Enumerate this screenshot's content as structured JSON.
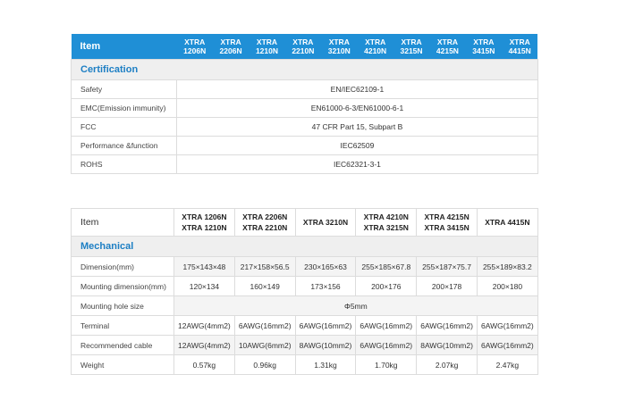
{
  "certification_table": {
    "header_item": "Item",
    "models": [
      [
        "XTRA",
        "1206N"
      ],
      [
        "XTRA",
        "2206N"
      ],
      [
        "XTRA",
        "1210N"
      ],
      [
        "XTRA",
        "2210N"
      ],
      [
        "XTRA",
        "3210N"
      ],
      [
        "XTRA",
        "4210N"
      ],
      [
        "XTRA",
        "3215N"
      ],
      [
        "XTRA",
        "4215N"
      ],
      [
        "XTRA",
        "3415N"
      ],
      [
        "XTRA",
        "4415N"
      ]
    ],
    "section": "Certification",
    "rows": [
      {
        "label": "Safety",
        "value": "EN/IEC62109-1"
      },
      {
        "label": "EMC(Emission immunity)",
        "value": "EN61000-6-3/EN61000-6-1"
      },
      {
        "label": "FCC",
        "value": "47 CFR Part 15, Subpart B"
      },
      {
        "label": "Performance &function",
        "value": "IEC62509"
      },
      {
        "label": "ROHS",
        "value": "IEC62321-3-1"
      }
    ]
  },
  "mechanical_table": {
    "header_item": "Item",
    "models": [
      [
        "XTRA 1206N",
        "XTRA 1210N"
      ],
      [
        "XTRA 2206N",
        "XTRA 2210N"
      ],
      [
        "XTRA 3210N"
      ],
      [
        "XTRA 4210N",
        "XTRA 3215N"
      ],
      [
        "XTRA 4215N",
        "XTRA 3415N"
      ],
      [
        "XTRA 4415N"
      ]
    ],
    "section": "Mechanical",
    "rows": [
      {
        "label": "Dimension(mm)",
        "values": [
          "175×143×48",
          "217×158×56.5",
          "230×165×63",
          "255×185×67.8",
          "255×187×75.7",
          "255×189×83.2"
        ]
      },
      {
        "label": "Mounting dimension(mm)",
        "values": [
          "120×134",
          "160×149",
          "173×156",
          "200×176",
          "200×178",
          "200×180"
        ]
      },
      {
        "label": "Mounting hole size",
        "span_value": "Φ5mm"
      },
      {
        "label": "Terminal",
        "values": [
          "12AWG(4mm2)",
          "6AWG(16mm2)",
          "6AWG(16mm2)",
          "6AWG(16mm2)",
          "6AWG(16mm2)",
          "6AWG(16mm2)"
        ]
      },
      {
        "label": "Recommended cable",
        "values": [
          "12AWG(4mm2)",
          "10AWG(6mm2)",
          "8AWG(10mm2)",
          "6AWG(16mm2)",
          "8AWG(10mm2)",
          "6AWG(16mm2)"
        ]
      },
      {
        "label": "Weight",
        "values": [
          "0.57kg",
          "0.96kg",
          "1.31kg",
          "1.70kg",
          "2.07kg",
          "2.47kg"
        ]
      }
    ]
  }
}
